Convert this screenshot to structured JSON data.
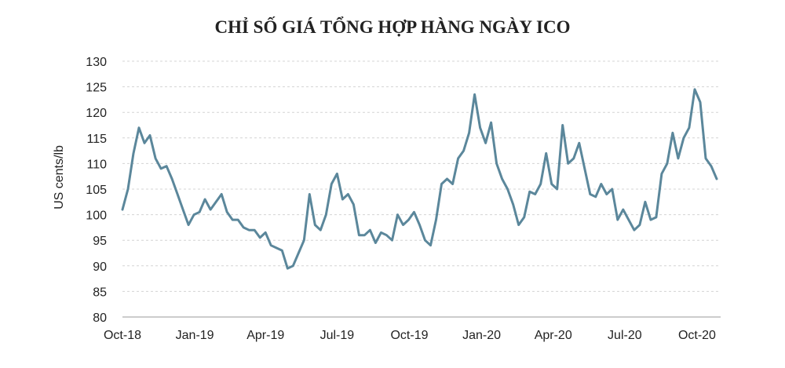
{
  "chart_data": {
    "type": "line",
    "title": "CHỈ SỐ GIÁ TỔNG HỢP HÀNG NGÀY ICO",
    "xlabel": "",
    "ylabel": "US cents/lb",
    "ylim": [
      80,
      130
    ],
    "yticks": [
      "80",
      "85",
      "90",
      "95",
      "100",
      "105",
      "110",
      "115",
      "120",
      "125",
      "130"
    ],
    "xticks": [
      "Oct-18",
      "Jan-19",
      "Apr-19",
      "Jul-19",
      "Oct-19",
      "Jan-20",
      "Apr-20",
      "Jul-20",
      "Oct-20"
    ],
    "grid": true,
    "line_color": "#5b879b",
    "series": [
      {
        "x_start": "2018-10-01",
        "x_end": "2020-10-31",
        "x": [
          "2018-10-01",
          "2018-10-08",
          "2018-10-15",
          "2018-10-22",
          "2018-10-29",
          "2018-11-05",
          "2018-11-12",
          "2018-11-19",
          "2018-11-26",
          "2018-12-03",
          "2018-12-10",
          "2018-12-17",
          "2018-12-24",
          "2018-12-31",
          "2019-01-07",
          "2019-01-14",
          "2019-01-21",
          "2019-01-28",
          "2019-02-04",
          "2019-02-11",
          "2019-02-18",
          "2019-02-25",
          "2019-03-04",
          "2019-03-11",
          "2019-03-18",
          "2019-03-25",
          "2019-04-01",
          "2019-04-08",
          "2019-04-15",
          "2019-04-22",
          "2019-04-29",
          "2019-05-06",
          "2019-05-13",
          "2019-05-20",
          "2019-05-27",
          "2019-06-03",
          "2019-06-10",
          "2019-06-17",
          "2019-06-24",
          "2019-07-01",
          "2019-07-08",
          "2019-07-15",
          "2019-07-22",
          "2019-07-29",
          "2019-08-05",
          "2019-08-12",
          "2019-08-19",
          "2019-08-26",
          "2019-09-02",
          "2019-09-09",
          "2019-09-16",
          "2019-09-23",
          "2019-09-30",
          "2019-10-07",
          "2019-10-14",
          "2019-10-21",
          "2019-10-28",
          "2019-11-04",
          "2019-11-11",
          "2019-11-18",
          "2019-11-25",
          "2019-12-02",
          "2019-12-09",
          "2019-12-16",
          "2019-12-23",
          "2019-12-30",
          "2020-01-06",
          "2020-01-13",
          "2020-01-20",
          "2020-01-27",
          "2020-02-03",
          "2020-02-10",
          "2020-02-17",
          "2020-02-24",
          "2020-03-02",
          "2020-03-09",
          "2020-03-16",
          "2020-03-23",
          "2020-03-30",
          "2020-04-06",
          "2020-04-13",
          "2020-04-20",
          "2020-04-27",
          "2020-05-04",
          "2020-05-11",
          "2020-05-18",
          "2020-05-25",
          "2020-06-01",
          "2020-06-08",
          "2020-06-15",
          "2020-06-22",
          "2020-06-29",
          "2020-07-06",
          "2020-07-13",
          "2020-07-20",
          "2020-07-27",
          "2020-08-03",
          "2020-08-10",
          "2020-08-17",
          "2020-08-24",
          "2020-08-31",
          "2020-09-07",
          "2020-09-14",
          "2020-09-21",
          "2020-09-28",
          "2020-10-05",
          "2020-10-12",
          "2020-10-19",
          "2020-10-26"
        ],
        "values": [
          101.0,
          105.0,
          112.0,
          117.0,
          114.0,
          115.5,
          111.0,
          109.0,
          109.5,
          107.0,
          104.0,
          101.0,
          98.0,
          100.0,
          100.5,
          103.0,
          101.0,
          102.5,
          104.0,
          100.5,
          99.0,
          99.0,
          97.5,
          97.0,
          97.0,
          95.5,
          96.5,
          94.0,
          93.5,
          93.0,
          89.5,
          90.0,
          92.5,
          95.0,
          104.0,
          98.0,
          97.0,
          100.0,
          106.0,
          108.0,
          103.0,
          104.0,
          102.0,
          96.0,
          96.0,
          97.0,
          94.5,
          96.5,
          96.0,
          95.0,
          100.0,
          98.0,
          99.0,
          100.5,
          98.0,
          95.0,
          94.0,
          99.0,
          106.0,
          107.0,
          106.0,
          111.0,
          112.5,
          116.0,
          123.5,
          117.0,
          114.0,
          118.0,
          110.0,
          107.0,
          105.0,
          102.0,
          98.0,
          99.5,
          104.5,
          104.0,
          106.0,
          112.0,
          106.0,
          105.0,
          117.5,
          110.0,
          111.0,
          114.0,
          109.0,
          104.0,
          103.5,
          106.0,
          104.0,
          105.0,
          99.0,
          101.0,
          99.0,
          97.0,
          98.0,
          102.5,
          99.0,
          99.5,
          108.0,
          110.0,
          116.0,
          111.0,
          115.0,
          117.0,
          124.5,
          122.0,
          111.0,
          109.5,
          107.0
        ]
      }
    ]
  }
}
